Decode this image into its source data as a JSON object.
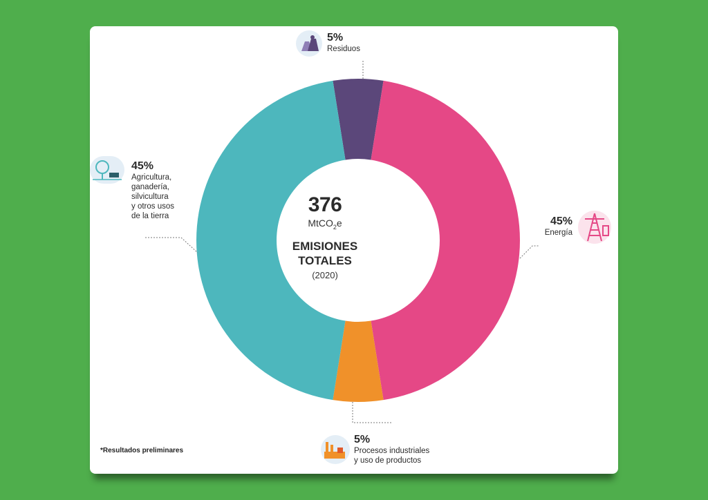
{
  "center": {
    "total": "376",
    "unit_main": "MtCO",
    "unit_sub": "2",
    "unit_tail": "e",
    "title_line1": "EMISIONES",
    "title_line2": "TOTALES",
    "year": "(2020)"
  },
  "note": "*Resultados preliminares",
  "icons": {
    "residuos": "waste-bags-icon",
    "energia": "power-tower-icon",
    "procesos": "factory-icon",
    "agricultura": "tree-cow-icon"
  },
  "colors": {
    "background": "#4fae4c",
    "residuos": "#5b477a",
    "energia": "#e54886",
    "procesos": "#f0912a",
    "agricultura": "#4db7bd"
  },
  "chart_data": {
    "type": "pie",
    "donut": true,
    "unit": "%",
    "labels": [
      {
        "pct": "5%",
        "name": "Residuos"
      },
      {
        "pct": "45%",
        "name": "Energía"
      },
      {
        "pct": "5%",
        "name": "Procesos industriales\ny uso de productos"
      },
      {
        "pct": "45%",
        "name": "Agricultura,\nganadería,\nsilvicultura\ny otros usos\nde la tierra"
      }
    ],
    "values": [
      5,
      45,
      5,
      45
    ]
  }
}
